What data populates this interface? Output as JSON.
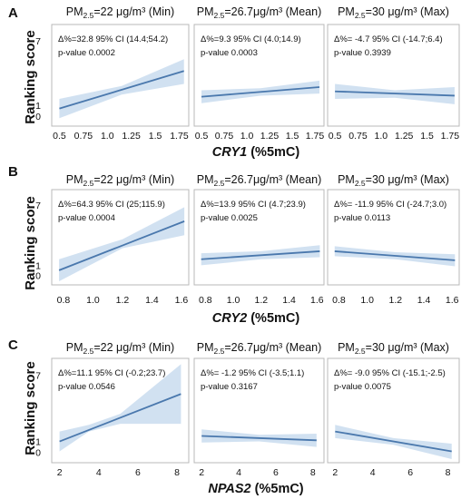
{
  "figure": {
    "y_axis_label": "Ranking score",
    "pm_prefix": "PM",
    "pm_sub": "2.5",
    "colors": {
      "line": "#4a78ad",
      "band": "#c9dcef",
      "frame": "#b8b8b8"
    }
  },
  "chart_data": [
    {
      "type": "line",
      "panel": "A",
      "xlabel_gene": "CRY1",
      "xlabel_unit": " (%5mC)",
      "x_ticks": [
        0.5,
        0.75,
        1.0,
        1.25,
        1.5,
        1.75
      ],
      "x_tick_labels": [
        "0.5",
        "0.75",
        "1.0",
        "1.25",
        "1.5",
        "1.75"
      ],
      "xlim": [
        0.42,
        1.85
      ],
      "y_ticks": [
        0,
        1,
        7
      ],
      "y_tick_labels": [
        "0",
        "1",
        "7"
      ],
      "ylim": [
        -0.6,
        8.2
      ],
      "panels": [
        {
          "title_value": "=22 μg/m³ (Min)",
          "annotation_line1": "Δ%=32.8  95% CI (14.4;54.2)",
          "annotation_line2": "p-value 0.0002",
          "line": {
            "x": [
              0.5,
              1.8
            ],
            "y": [
              0.7,
              4.2
            ]
          },
          "band": {
            "x": [
              0.5,
              1.15,
              1.8
            ],
            "lower": [
              -0.2,
              2.0,
              3.0
            ],
            "upper": [
              1.6,
              2.8,
              5.3
            ]
          }
        },
        {
          "title_value": "=26.7μg/m³ (Mean)",
          "annotation_line1": "Δ%=9.3 95% CI (4.0;14.9)",
          "annotation_line2": "p-value 0.0003",
          "line": {
            "x": [
              0.5,
              1.8
            ],
            "y": [
              1.8,
              2.7
            ]
          },
          "band": {
            "x": [
              0.5,
              1.15,
              1.8
            ],
            "lower": [
              1.2,
              1.9,
              2.1
            ],
            "upper": [
              2.4,
              2.6,
              3.3
            ]
          }
        },
        {
          "title_value": "=30 μg/m³ (Max)",
          "annotation_line1": "Δ%= -4.7 95% CI (-14.7;6.4)",
          "annotation_line2": "p-value 0.3939",
          "line": {
            "x": [
              0.5,
              1.8
            ],
            "y": [
              2.3,
              1.9
            ]
          },
          "band": {
            "x": [
              0.5,
              1.15,
              1.8
            ],
            "lower": [
              1.6,
              1.7,
              1.1
            ],
            "upper": [
              3.0,
              2.4,
              2.7
            ]
          }
        }
      ]
    },
    {
      "type": "line",
      "panel": "B",
      "xlabel_gene": "CRY2",
      "xlabel_unit": " (%5mC)",
      "x_ticks": [
        0.8,
        1.0,
        1.2,
        1.4,
        1.6
      ],
      "x_tick_labels": [
        "0.8",
        "1.0",
        "1.2",
        "1.4",
        "1.6"
      ],
      "xlim": [
        0.72,
        1.65
      ],
      "y_ticks": [
        0,
        1,
        7
      ],
      "y_tick_labels": [
        "0",
        "1",
        "7"
      ],
      "ylim": [
        -0.6,
        8.2
      ],
      "panels": [
        {
          "title_value": "=22 μg/m³ (Min)",
          "annotation_line1": "Δ%=64.3  95% CI (25;115.9)",
          "annotation_line2": "p-value 0.0004",
          "line": {
            "x": [
              0.77,
              1.62
            ],
            "y": [
              0.5,
              5.4
            ]
          },
          "band": {
            "x": [
              0.77,
              1.2,
              1.62
            ],
            "lower": [
              -0.6,
              2.7,
              4.0
            ],
            "upper": [
              1.6,
              3.6,
              6.8
            ]
          }
        },
        {
          "title_value": "=26.7μg/m³ (Mean)",
          "annotation_line1": "Δ%=13.9  95% CI (4.7;23.9)",
          "annotation_line2": "p-value 0.0025",
          "line": {
            "x": [
              0.77,
              1.62
            ],
            "y": [
              1.6,
              2.4
            ]
          },
          "band": {
            "x": [
              0.77,
              1.2,
              1.62
            ],
            "lower": [
              1.0,
              1.6,
              1.8
            ],
            "upper": [
              2.2,
              2.4,
              3.0
            ]
          }
        },
        {
          "title_value": "=30 μg/m³ (Max)",
          "annotation_line1": "Δ%= -11.9  95% CI (-24.7;3.0)",
          "annotation_line2": "p-value 0.0113",
          "line": {
            "x": [
              0.77,
              1.62
            ],
            "y": [
              2.4,
              1.5
            ]
          },
          "band": {
            "x": [
              0.77,
              1.2,
              1.62
            ],
            "lower": [
              1.9,
              1.6,
              0.9
            ],
            "upper": [
              2.9,
              2.3,
              2.1
            ]
          }
        }
      ]
    },
    {
      "type": "line",
      "panel": "C",
      "xlabel_gene": "NPAS2",
      "xlabel_unit": " (%5mC)",
      "x_ticks": [
        2,
        4,
        6,
        8
      ],
      "x_tick_labels": [
        "2",
        "4",
        "6",
        "8"
      ],
      "xlim": [
        1.6,
        8.6
      ],
      "y_ticks": [
        0,
        1,
        7
      ],
      "y_tick_labels": [
        "0",
        "1",
        "7"
      ],
      "ylim": [
        -0.6,
        8.2
      ],
      "panels": [
        {
          "title_value": "=22 μg/m³ (Min)",
          "annotation_line1": "Δ%=11.1  95% CI (-0.2;23.7)",
          "annotation_line2": "p-value 0.0546",
          "line": {
            "x": [
              2,
              8.2
            ],
            "y": [
              1.0,
              5.3
            ]
          },
          "band": {
            "x": [
              2,
              3.5,
              5.1,
              8.2
            ],
            "lower": [
              0.1,
              1.9,
              2.6,
              2.6
            ],
            "upper": [
              1.9,
              2.5,
              3.5,
              8.0
            ]
          }
        },
        {
          "title_value": "=26.7μg/m³ (Mean)",
          "annotation_line1": "Δ%= -1.2  95% CI (-3.5;1.1)",
          "annotation_line2": "p-value 0.3167",
          "line": {
            "x": [
              2,
              8.2
            ],
            "y": [
              1.5,
              1.1
            ]
          },
          "band": {
            "x": [
              2,
              5.1,
              8.2
            ],
            "lower": [
              0.9,
              1.0,
              0.5
            ],
            "upper": [
              2.1,
              1.6,
              1.7
            ]
          }
        },
        {
          "title_value": "=30 μg/m³ (Max)",
          "annotation_line1": "Δ%= -9.0 95% CI (-15.1;-2.5)",
          "annotation_line2": "p-value 0.0075",
          "line": {
            "x": [
              2,
              8.2
            ],
            "y": [
              1.9,
              0.1
            ]
          },
          "band": {
            "x": [
              2,
              5.1,
              8.2
            ],
            "lower": [
              1.3,
              0.7,
              -0.6
            ],
            "upper": [
              2.5,
              1.3,
              0.8
            ]
          }
        }
      ]
    }
  ]
}
